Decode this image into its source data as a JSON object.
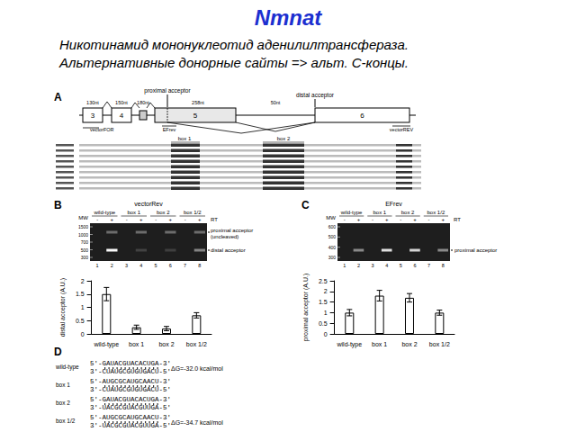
{
  "header": {
    "title": "Nmnat",
    "color": "#1c2fd0",
    "subtitle": [
      "Никотинамид мононуклеотид аденилилтрансфераза.",
      "Альтернативные донорные сайты => альт. С-концы."
    ]
  },
  "panel_a": {
    "label": "A",
    "exons": [
      "3",
      "4",
      "5",
      "6"
    ],
    "lengths": [
      "130nt",
      "150nt",
      "180nt",
      "258nt",
      "50nt"
    ],
    "acceptors": [
      "proximal acceptor",
      "distal acceptor"
    ],
    "primers": [
      "vectorFOR",
      "EFrev",
      "vectorREV"
    ],
    "boxes": [
      "box 1",
      "box 2"
    ]
  },
  "panel_b": {
    "label": "B",
    "primer": "vectorRev",
    "mw_label": "MW",
    "mw": [
      1500,
      1000,
      700,
      500,
      300
    ],
    "groups": [
      "wild-type",
      "box 1",
      "box 2",
      "box 1/2"
    ],
    "rt": [
      "-",
      "+",
      "-",
      "+",
      "-",
      "+",
      "-",
      "+"
    ],
    "rt_label": "RT",
    "lanes": [
      "1",
      "2",
      "3",
      "4",
      "5",
      "6",
      "7",
      "8"
    ],
    "band_labels": [
      "proximal acceptor",
      "(uncleaved)",
      "distal acceptor"
    ]
  },
  "panel_c": {
    "label": "C",
    "primer": "EFrev",
    "mw_label": "MW",
    "mw": [
      600,
      500,
      400,
      300
    ],
    "groups": [
      "wild-type",
      "box 1",
      "box 2",
      "box 1/2"
    ],
    "rt": [
      "-",
      "+",
      "-",
      "+",
      "-",
      "+",
      "-",
      "+"
    ],
    "rt_label": "RT",
    "lanes": [
      "1",
      "2",
      "3",
      "4",
      "5",
      "6",
      "7",
      "8"
    ],
    "band_labels": [
      "proximal acceptor"
    ]
  },
  "panel_d": {
    "label": "D",
    "duplexes": [
      {
        "name": "wild-type",
        "top": "5'-GAUACGUACACUGA-3'",
        "bottom": "3'-CUAUGCGUGUGACU-5'",
        "dg": "ΔG=-32.0 kcal/mol"
      },
      {
        "name": "box 1",
        "top": "5'-AUGCGCAUGCAACU-3'",
        "bottom": "3'-CUAUGCGUGUGACU-5'"
      },
      {
        "name": "box 2",
        "top": "5'-GAUACGUACACUGA-3'",
        "bottom": "3'-UACGCGUACGUUGA-5'"
      },
      {
        "name": "box 1/2",
        "top": "5'-AUGCGCAUGCAACU-3'",
        "bottom": "3'-UACGCGUACGUUGA-5'",
        "dg": "ΔG=-34.7 kcal/mol"
      }
    ]
  },
  "chart_data": [
    {
      "type": "bar",
      "categories": [
        "wild-type",
        "box 1",
        "box 2",
        "box 1/2"
      ],
      "values": [
        1.5,
        0.25,
        0.2,
        0.7
      ],
      "errors": [
        0.25,
        0.08,
        0.08,
        0.1
      ],
      "color": "#ffffff",
      "y_label": "distal acceptor (A.U.)",
      "ylim": [
        0,
        2
      ],
      "yticks": [
        0,
        0.5,
        1,
        1.5,
        2
      ],
      "grid": false
    },
    {
      "type": "bar",
      "categories": [
        "wild-type",
        "box 1",
        "box 2",
        "box 1/2"
      ],
      "values": [
        1.0,
        1.8,
        1.7,
        1.0
      ],
      "errors": [
        0.15,
        0.25,
        0.2,
        0.12
      ],
      "color": "#ffffff",
      "y_label": "proximal acceptor (A.U.)",
      "ylim": [
        0,
        2.5
      ],
      "yticks": [
        0,
        0.5,
        1,
        1.5,
        2,
        2.5
      ],
      "grid": false
    }
  ]
}
